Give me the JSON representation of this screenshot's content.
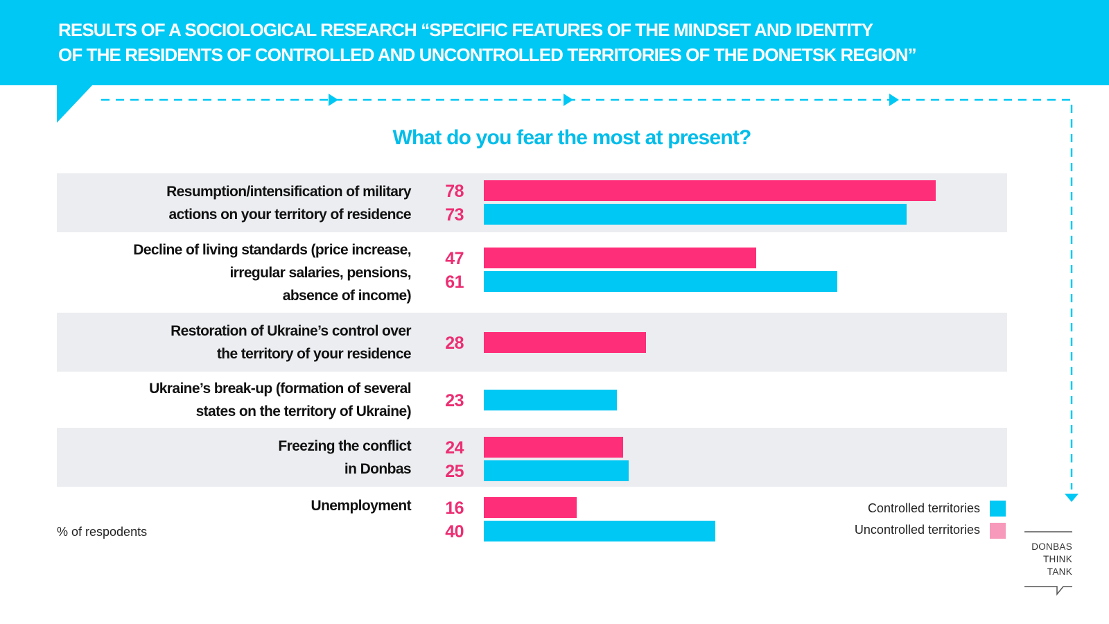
{
  "header": {
    "title_line1": "RESULTS OF A SOCIOLOGICAL RESEARCH “SPECIFIC FEATURES OF THE MINDSET AND IDENTITY",
    "title_line2": "OF THE RESIDENTS OF CONTROLLED AND UNCONTROLLED TERRITORIES OF THE DONETSK REGION”"
  },
  "colors": {
    "controlled": "#00c8f4",
    "uncontrolled": "#ff2e78",
    "uncontrolled_legend": "#f799ba",
    "accent": "#00c8f4",
    "number": "#ec2e72"
  },
  "chart_data": {
    "type": "bar",
    "orientation": "horizontal",
    "title": "What do you fear the most at present?",
    "unit": "% of respodents",
    "xlim": [
      0,
      100
    ],
    "categories": [
      [
        "Resumption/intensification of military",
        "actions on your territory of residence"
      ],
      [
        "Decline of living standards (price increase,",
        "irregular salaries, pensions,",
        "absence of income)"
      ],
      [
        "Restoration of Ukraine’s control over",
        "the territory of your residence"
      ],
      [
        "Ukraine’s break-up (formation of several",
        "states on the territory of Ukraine)"
      ],
      [
        "Freezing the conflict",
        "in Donbas"
      ],
      [
        "Unemployment"
      ]
    ],
    "series": [
      {
        "name": "Uncontrolled territories",
        "values": [
          78,
          47,
          28,
          null,
          24,
          16
        ]
      },
      {
        "name": "Controlled territories",
        "values": [
          73,
          61,
          null,
          23,
          25,
          40
        ]
      }
    ],
    "legend": {
      "placement": "bottom-right",
      "items": [
        "Controlled territories",
        "Uncontrolled territories"
      ]
    }
  },
  "footer": {
    "logo_lines": [
      "DONBAS",
      "THINK",
      "TANK"
    ]
  }
}
